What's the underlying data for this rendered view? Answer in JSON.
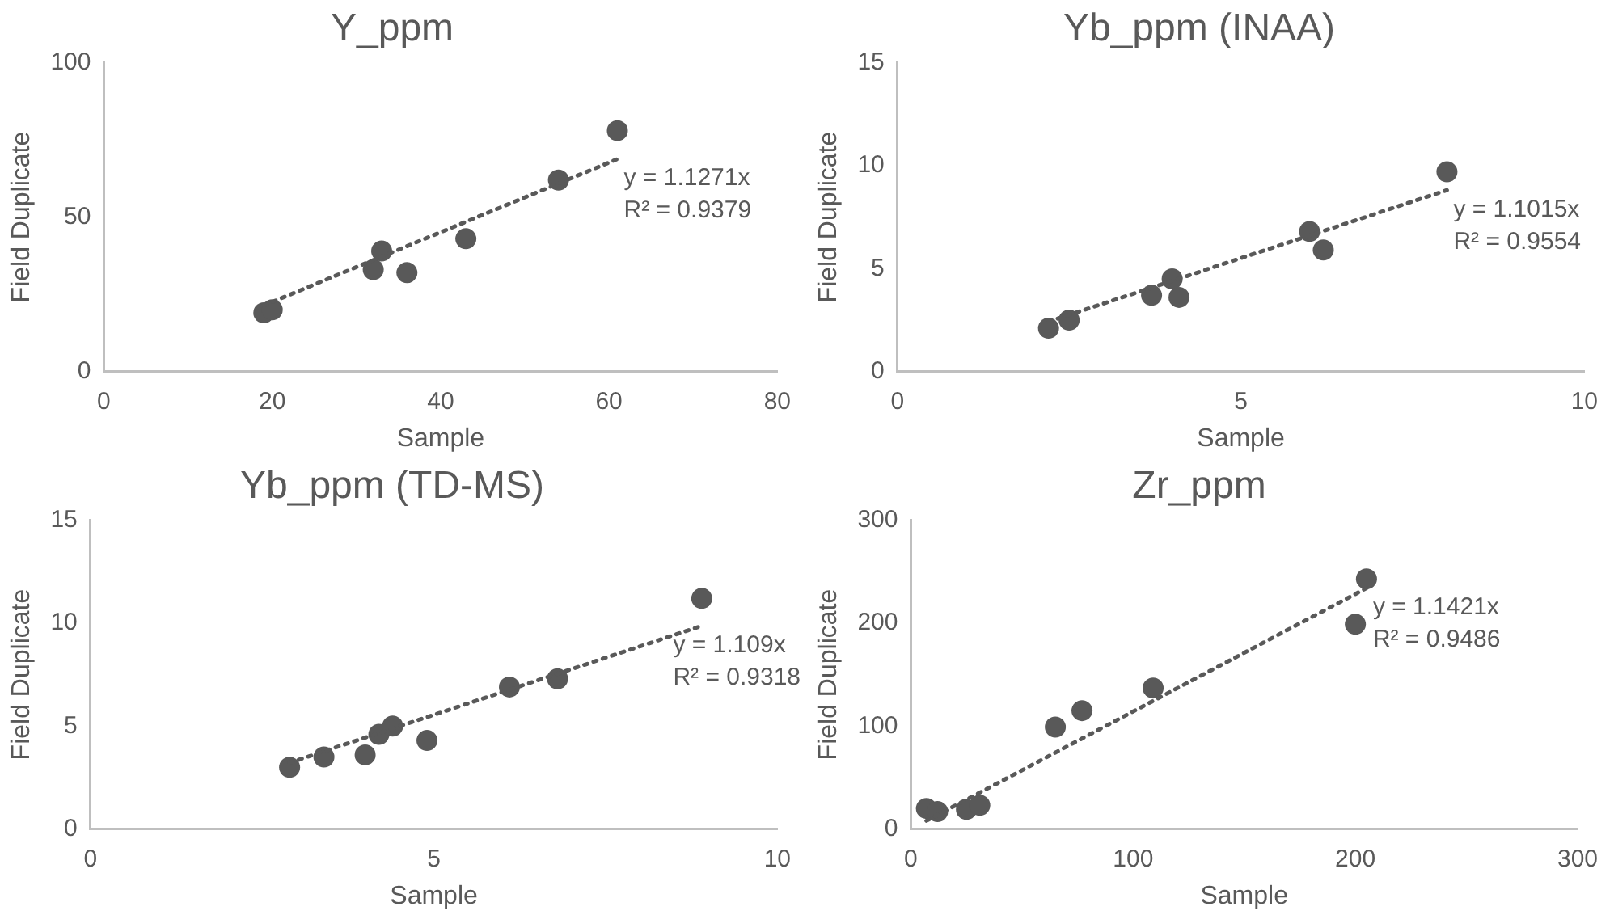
{
  "chart_data": [
    {
      "type": "scatter",
      "title": "Y_ppm",
      "xlabel": "Sample",
      "ylabel": "Field Duplicate",
      "x": [
        19,
        20,
        32,
        33,
        36,
        43,
        54,
        61
      ],
      "series": [
        {
          "color": "#595959",
          "marker": "circle",
          "values": [
            19,
            20,
            33,
            39,
            32,
            43,
            62,
            78
          ]
        },
        {
          "type": "line",
          "color": "#595959",
          "line_style": "dotted",
          "marker": "none",
          "x": [
            19,
            61
          ],
          "values": [
            21.4,
            68.8
          ]
        }
      ],
      "xlim": [
        0,
        80
      ],
      "xticks": [
        0,
        20,
        40,
        60,
        80
      ],
      "ylim": [
        0,
        100
      ],
      "yticks": [
        0,
        50,
        100
      ],
      "grid": false,
      "annotations": [
        "y = 1.1271x",
        "R² = 0.9379"
      ]
    },
    {
      "type": "scatter",
      "title": "Yb_ppm (INAA)",
      "xlabel": "Sample",
      "ylabel": "Field Duplicate",
      "x": [
        2.2,
        2.5,
        3.7,
        4.0,
        4.1,
        6.0,
        6.2,
        8.0
      ],
      "series": [
        {
          "color": "#595959",
          "marker": "circle",
          "values": [
            2.1,
            2.5,
            3.7,
            4.5,
            3.6,
            6.8,
            5.9,
            9.7
          ]
        },
        {
          "type": "line",
          "color": "#595959",
          "line_style": "dotted",
          "marker": "none",
          "x": [
            2.2,
            8.0
          ],
          "values": [
            2.42,
            8.81
          ]
        }
      ],
      "xlim": [
        0,
        10
      ],
      "xticks": [
        0,
        5,
        10
      ],
      "ylim": [
        0,
        15
      ],
      "yticks": [
        0,
        5,
        10,
        15
      ],
      "grid": false,
      "annotations": [
        "y = 1.1015x",
        "R² = 0.9554"
      ]
    },
    {
      "type": "scatter",
      "title": "Yb_ppm (TD-MS)",
      "xlabel": "Sample",
      "ylabel": "Field Duplicate",
      "x": [
        2.9,
        3.4,
        4.0,
        4.2,
        4.4,
        4.9,
        6.1,
        6.8,
        8.9
      ],
      "series": [
        {
          "color": "#595959",
          "marker": "circle",
          "values": [
            3.0,
            3.5,
            3.6,
            4.6,
            5.0,
            4.3,
            6.9,
            7.3,
            11.2
          ]
        },
        {
          "type": "line",
          "color": "#595959",
          "line_style": "dotted",
          "marker": "none",
          "x": [
            2.9,
            8.9
          ],
          "values": [
            3.22,
            9.87
          ]
        }
      ],
      "xlim": [
        0,
        10
      ],
      "xticks": [
        0,
        5,
        10
      ],
      "ylim": [
        0,
        15
      ],
      "yticks": [
        0,
        5,
        10,
        15
      ],
      "grid": false,
      "annotations": [
        "y = 1.109x",
        "R² = 0.9318"
      ]
    },
    {
      "type": "scatter",
      "title": "Zr_ppm",
      "xlabel": "Sample",
      "ylabel": "Field Duplicate",
      "x": [
        7,
        12,
        25,
        31,
        65,
        77,
        109,
        200,
        205
      ],
      "series": [
        {
          "color": "#595959",
          "marker": "circle",
          "values": [
            20,
            17,
            19,
            23,
            99,
            115,
            137,
            199,
            243
          ]
        },
        {
          "type": "line",
          "color": "#595959",
          "line_style": "dotted",
          "marker": "none",
          "x": [
            7,
            205
          ],
          "values": [
            8,
            234
          ]
        }
      ],
      "xlim": [
        0,
        300
      ],
      "xticks": [
        0,
        100,
        200,
        300
      ],
      "ylim": [
        0,
        300
      ],
      "yticks": [
        0,
        100,
        200,
        300
      ],
      "grid": false,
      "annotations": [
        "y = 1.1421x",
        "R² = 0.9486"
      ]
    }
  ]
}
